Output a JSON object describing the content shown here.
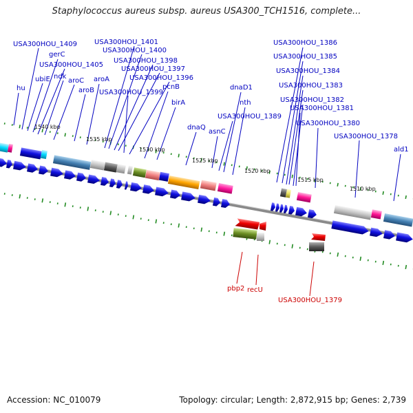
{
  "title": "Staphylococcus aureus subsp. aureus USA300_TCH1516, complete...",
  "accession": "Accession: NC_010079",
  "summary": "Topology: circular; Length: 2,872,915 bp; Genes: 2,739",
  "colors": {
    "label_forward": "#0000c0",
    "label_reverse": "#cc0000",
    "backbone": "#808080",
    "tick": "#228b22",
    "gene_forward": "#1010e0",
    "gene_reverse": "#e00000"
  },
  "kbp_labels": [
    "1540 kbp",
    "1535 kbp",
    "1530 kbp",
    "1525 kbp",
    "1520 kbp",
    "1515 kbp",
    "1510 kbp"
  ],
  "forward_gene_labels": [
    "USA300HOU_1409",
    "gerC",
    "USA300HOU_1405",
    "ubiE",
    "ndk",
    "hu",
    "aroC",
    "aroB",
    "aroA",
    "USA300HOU_1401",
    "USA300HOU_1400",
    "USA300HOU_1398",
    "USA300HOU_1397",
    "USA300HOU_1396",
    "pcnB",
    "USA300HOU_1399",
    "birA",
    "dnaQ",
    "dnaD1",
    "nth",
    "asnC",
    "USA300HOU_1389",
    "USA300HOU_1386",
    "USA300HOU_1385",
    "USA300HOU_1384",
    "USA300HOU_1383",
    "USA300HOU_1382",
    "USA300HOU_1381",
    "USA300HOU_1380",
    "USA300HOU_1378",
    "ald1"
  ],
  "reverse_gene_labels": [
    "pbp2",
    "recU",
    "USA300HOU_1379"
  ]
}
